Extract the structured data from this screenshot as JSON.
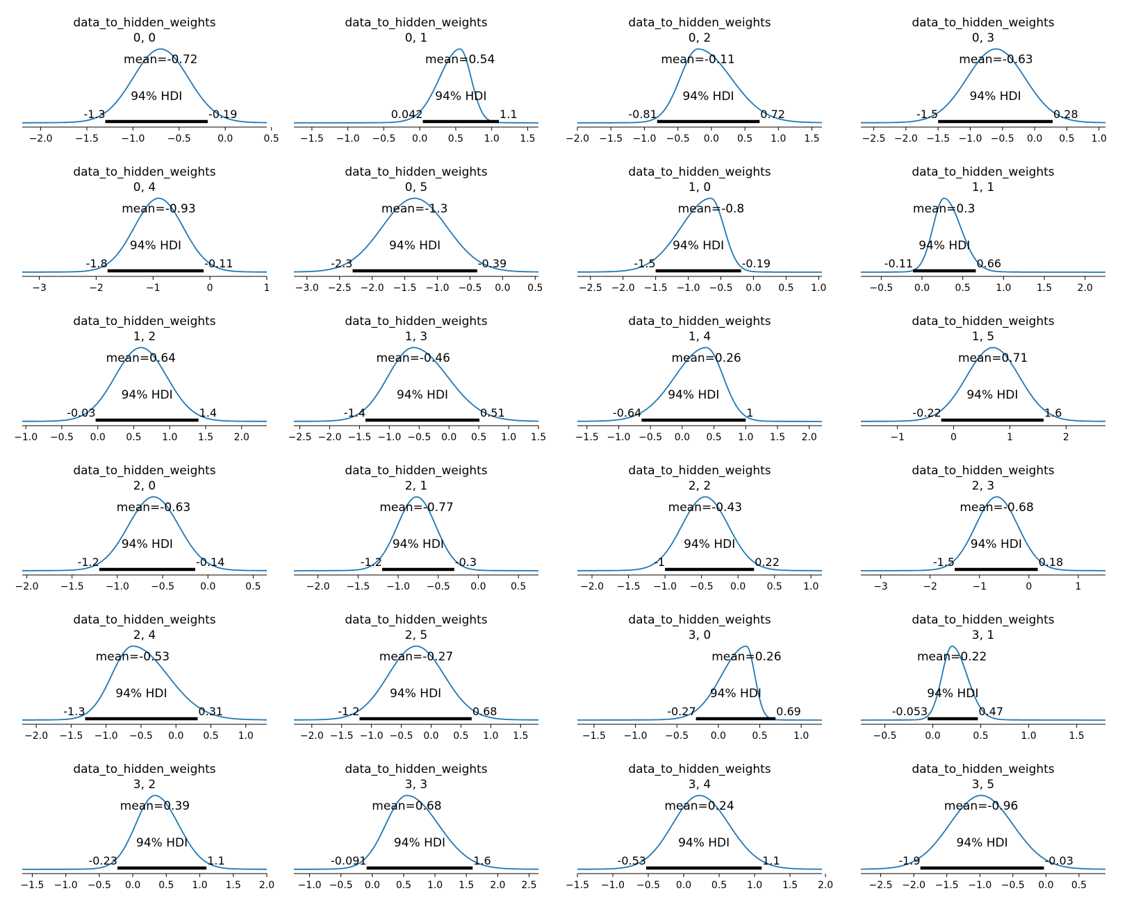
{
  "colors": {
    "density": "#1f77b4",
    "hdi_bar": "#000000",
    "axis": "#000000"
  },
  "chart_data": [
    {
      "type": "area",
      "title": "data_to_hidden_weights",
      "subtitle": "0, 0",
      "mean": -0.72,
      "mean_label": "mean=-0.72",
      "hdi_label": "94% HDI",
      "hdi": [
        -1.3,
        -0.19
      ],
      "hdi_labels": [
        "-1.3",
        "-0.19"
      ],
      "xlim": [
        -2.2,
        0.45
      ],
      "ticks": [
        -2.0,
        -1.5,
        -1.0,
        -0.5,
        0.0,
        0.5
      ],
      "tick_labels": [
        "−2.0",
        "−1.5",
        "−1.0",
        "−0.5",
        "0.0",
        "0.5"
      ],
      "mode": -0.7,
      "sigma": 0.3,
      "skew": 0
    },
    {
      "type": "area",
      "title": "data_to_hidden_weights",
      "subtitle": "0, 1",
      "mean": 0.54,
      "mean_label": "mean=0.54",
      "hdi_label": "94% HDI",
      "hdi": [
        0.042,
        1.1
      ],
      "hdi_labels": [
        "0.042",
        "1.1"
      ],
      "xlim": [
        -1.75,
        1.65
      ],
      "ticks": [
        -1.5,
        -1.0,
        -0.5,
        0.0,
        0.5,
        1.0,
        1.5
      ],
      "tick_labels": [
        "−1.5",
        "−1.0",
        "−0.5",
        "0.0",
        "0.5",
        "1.0",
        "1.5"
      ],
      "mode": 0.56,
      "sigma": 0.22,
      "skew": -0.3
    },
    {
      "type": "area",
      "title": "data_to_hidden_weights",
      "subtitle": "0, 2",
      "mean": -0.11,
      "mean_label": "mean=-0.11",
      "hdi_label": "94% HDI",
      "hdi": [
        -0.81,
        0.72
      ],
      "hdi_labels": [
        "-0.81",
        "0.72"
      ],
      "xlim": [
        -2.0,
        1.65
      ],
      "ticks": [
        -2.0,
        -1.5,
        -1.0,
        -0.5,
        0.0,
        0.5,
        1.0,
        1.5
      ],
      "tick_labels": [
        "−2.0",
        "−1.5",
        "−1.0",
        "−0.5",
        "0.0",
        "0.5",
        "1.0",
        "1.5"
      ],
      "mode": -0.2,
      "sigma": 0.38,
      "skew": 0.3
    },
    {
      "type": "area",
      "title": "data_to_hidden_weights",
      "subtitle": "0, 3",
      "mean": -0.63,
      "mean_label": "mean=-0.63",
      "hdi_label": "94% HDI",
      "hdi": [
        -1.5,
        0.28
      ],
      "hdi_labels": [
        "-1.5",
        "0.28"
      ],
      "xlim": [
        -2.7,
        1.1
      ],
      "ticks": [
        -2.5,
        -2.0,
        -1.5,
        -1.0,
        -0.5,
        0.0,
        0.5,
        1.0
      ],
      "tick_labels": [
        "−2.5",
        "−2.0",
        "−1.5",
        "−1.0",
        "−0.5",
        "0.0",
        "0.5",
        "1.0"
      ],
      "mode": -0.6,
      "sigma": 0.45,
      "skew": 0
    },
    {
      "type": "area",
      "title": "data_to_hidden_weights",
      "subtitle": "0, 4",
      "mean": -0.93,
      "mean_label": "mean=-0.93",
      "hdi_label": "94% HDI",
      "hdi": [
        -1.8,
        -0.11
      ],
      "hdi_labels": [
        "-1.8",
        "-0.11"
      ],
      "xlim": [
        -3.3,
        1.0
      ],
      "ticks": [
        -3,
        -2,
        -1,
        0,
        1
      ],
      "tick_labels": [
        "−3",
        "−2",
        "−1",
        "0",
        "1"
      ],
      "mode": -0.9,
      "sigma": 0.43,
      "skew": 0
    },
    {
      "type": "area",
      "title": "data_to_hidden_weights",
      "subtitle": "0, 5",
      "mean": -1.3,
      "mean_label": "mean=-1.3",
      "hdi_label": "94% HDI",
      "hdi": [
        -2.3,
        -0.39
      ],
      "hdi_labels": [
        "-2.3",
        "-0.39"
      ],
      "xlim": [
        -3.2,
        0.55
      ],
      "ticks": [
        -3.0,
        -2.5,
        -2.0,
        -1.5,
        -1.0,
        -0.5,
        0.0,
        0.5
      ],
      "tick_labels": [
        "−3.0",
        "−2.5",
        "−2.0",
        "−1.5",
        "−1.0",
        "−0.5",
        "0.0",
        "0.5"
      ],
      "mode": -1.35,
      "sigma": 0.5,
      "skew": 0
    },
    {
      "type": "area",
      "title": "data_to_hidden_weights",
      "subtitle": "1, 0",
      "mean": -0.8,
      "mean_label": "mean=-0.8",
      "hdi_label": "94% HDI",
      "hdi": [
        -1.5,
        -0.19
      ],
      "hdi_labels": [
        "-1.5",
        "-0.19"
      ],
      "xlim": [
        -2.7,
        1.05
      ],
      "ticks": [
        -2.5,
        -2.0,
        -1.5,
        -1.0,
        -0.5,
        0.0,
        0.5,
        1.0
      ],
      "tick_labels": [
        "−2.5",
        "−2.0",
        "−1.5",
        "−1.0",
        "−0.5",
        "0.0",
        "0.5",
        "1.0"
      ],
      "mode": -0.65,
      "sigma": 0.33,
      "skew": -0.4
    },
    {
      "type": "area",
      "title": "data_to_hidden_weights",
      "subtitle": "1, 1",
      "mean": 0.3,
      "mean_label": "mean=0.3",
      "hdi_label": "94% HDI",
      "hdi": [
        -0.11,
        0.66
      ],
      "hdi_labels": [
        "-0.11",
        "0.66"
      ],
      "xlim": [
        -0.75,
        2.25
      ],
      "ticks": [
        -0.5,
        0.0,
        0.5,
        1.0,
        1.5,
        2.0
      ],
      "tick_labels": [
        "−0.5",
        "0.0",
        "0.5",
        "1.0",
        "1.5",
        "2.0"
      ],
      "mode": 0.27,
      "sigma": 0.17,
      "skew": 0.2
    },
    {
      "type": "area",
      "title": "data_to_hidden_weights",
      "subtitle": "1, 2",
      "mean": 0.64,
      "mean_label": "mean=0.64",
      "hdi_label": "94% HDI",
      "hdi": [
        -0.03,
        1.4
      ],
      "hdi_labels": [
        "-0.03",
        "1.4"
      ],
      "xlim": [
        -1.05,
        2.35
      ],
      "ticks": [
        -1.0,
        -0.5,
        0.0,
        0.5,
        1.0,
        1.5,
        2.0
      ],
      "tick_labels": [
        "−1.0",
        "−0.5",
        "0.0",
        "0.5",
        "1.0",
        "1.5",
        "2.0"
      ],
      "mode": 0.6,
      "sigma": 0.36,
      "skew": 0
    },
    {
      "type": "area",
      "title": "data_to_hidden_weights",
      "subtitle": "1, 3",
      "mean": -0.46,
      "mean_label": "mean=-0.46",
      "hdi_label": "94% HDI",
      "hdi": [
        -1.4,
        0.51
      ],
      "hdi_labels": [
        "-1.4",
        "0.51"
      ],
      "xlim": [
        -2.6,
        1.5
      ],
      "ticks": [
        -2.5,
        -2.0,
        -1.5,
        -1.0,
        -0.5,
        0.0,
        0.5,
        1.0,
        1.5
      ],
      "tick_labels": [
        "−2.5",
        "−2.0",
        "−1.5",
        "−1.0",
        "−0.5",
        "0.0",
        "0.5",
        "1.0",
        "1.5"
      ],
      "mode": -0.6,
      "sigma": 0.5,
      "skew": 0.15
    },
    {
      "type": "area",
      "title": "data_to_hidden_weights",
      "subtitle": "1, 4",
      "mean": 0.26,
      "mean_label": "mean=0.26",
      "hdi_label": "94% HDI",
      "hdi": [
        -0.64,
        1.0
      ],
      "hdi_labels": [
        "-0.64",
        "1"
      ],
      "xlim": [
        -1.65,
        2.2
      ],
      "ticks": [
        -1.5,
        -1.0,
        -0.5,
        0.0,
        0.5,
        1.0,
        1.5,
        2.0
      ],
      "tick_labels": [
        "−1.5",
        "−1.0",
        "−0.5",
        "0.0",
        "0.5",
        "1.0",
        "1.5",
        "2.0"
      ],
      "mode": 0.38,
      "sigma": 0.38,
      "skew": -0.3
    },
    {
      "type": "area",
      "title": "data_to_hidden_weights",
      "subtitle": "1, 5",
      "mean": 0.71,
      "mean_label": "mean=0.71",
      "hdi_label": "94% HDI",
      "hdi": [
        -0.22,
        1.6
      ],
      "hdi_labels": [
        "-0.22",
        "1.6"
      ],
      "xlim": [
        -1.65,
        2.7
      ],
      "ticks": [
        -1,
        0,
        1,
        2
      ],
      "tick_labels": [
        "−1",
        "0",
        "1",
        "2"
      ],
      "mode": 0.7,
      "sigma": 0.47,
      "skew": 0
    },
    {
      "type": "area",
      "title": "data_to_hidden_weights",
      "subtitle": "2, 0",
      "mean": -0.63,
      "mean_label": "mean=-0.63",
      "hdi_label": "94% HDI",
      "hdi": [
        -1.2,
        -0.14
      ],
      "hdi_labels": [
        "-1.2",
        "-0.14"
      ],
      "xlim": [
        -2.05,
        0.65
      ],
      "ticks": [
        -2.0,
        -1.5,
        -1.0,
        -0.5,
        0.0,
        0.5
      ],
      "tick_labels": [
        "−2.0",
        "−1.5",
        "−1.0",
        "−0.5",
        "0.0",
        "0.5"
      ],
      "mode": -0.6,
      "sigma": 0.28,
      "skew": 0
    },
    {
      "type": "area",
      "title": "data_to_hidden_weights",
      "subtitle": "2, 1",
      "mean": -0.77,
      "mean_label": "mean=-0.77",
      "hdi_label": "94% HDI",
      "hdi": [
        -1.2,
        -0.3
      ],
      "hdi_labels": [
        "-1.2",
        "-0.3"
      ],
      "xlim": [
        -2.3,
        0.75
      ],
      "ticks": [
        -2.0,
        -1.5,
        -1.0,
        -0.5,
        0.0,
        0.5
      ],
      "tick_labels": [
        "−2.0",
        "−1.5",
        "−1.0",
        "−0.5",
        "0.0",
        "0.5"
      ],
      "mode": -0.77,
      "sigma": 0.24,
      "skew": 0
    },
    {
      "type": "area",
      "title": "data_to_hidden_weights",
      "subtitle": "2, 2",
      "mean": -0.43,
      "mean_label": "mean=-0.43",
      "hdi_label": "94% HDI",
      "hdi": [
        -1.0,
        0.22
      ],
      "hdi_labels": [
        "-1",
        "0.22"
      ],
      "xlim": [
        -2.2,
        1.15
      ],
      "ticks": [
        -2.0,
        -1.5,
        -1.0,
        -0.5,
        0.0,
        0.5,
        1.0
      ],
      "tick_labels": [
        "−2.0",
        "−1.5",
        "−1.0",
        "−0.5",
        "0.0",
        "0.5",
        "1.0"
      ],
      "mode": -0.45,
      "sigma": 0.32,
      "skew": 0
    },
    {
      "type": "area",
      "title": "data_to_hidden_weights",
      "subtitle": "2, 3",
      "mean": -0.68,
      "mean_label": "mean=-0.68",
      "hdi_label": "94% HDI",
      "hdi": [
        -1.5,
        0.18
      ],
      "hdi_labels": [
        "-1.5",
        "0.18"
      ],
      "xlim": [
        -3.4,
        1.55
      ],
      "ticks": [
        -3,
        -2,
        -1,
        0,
        1
      ],
      "tick_labels": [
        "−3",
        "−2",
        "−1",
        "0",
        "1"
      ],
      "mode": -0.65,
      "sigma": 0.43,
      "skew": 0
    },
    {
      "type": "area",
      "title": "data_to_hidden_weights",
      "subtitle": "2, 4",
      "mean": -0.53,
      "mean_label": "mean=-0.53",
      "hdi_label": "94% HDI",
      "hdi": [
        -1.3,
        0.31
      ],
      "hdi_labels": [
        "-1.3",
        "0.31"
      ],
      "xlim": [
        -2.2,
        1.3
      ],
      "ticks": [
        -2.0,
        -1.5,
        -1.0,
        -0.5,
        0.0,
        0.5,
        1.0
      ],
      "tick_labels": [
        "−2.0",
        "−1.5",
        "−1.0",
        "−0.5",
        "0.0",
        "0.5",
        "1.0"
      ],
      "mode": -0.62,
      "sigma": 0.4,
      "skew": 0.25
    },
    {
      "type": "area",
      "title": "data_to_hidden_weights",
      "subtitle": "2, 5",
      "mean": -0.27,
      "mean_label": "mean=-0.27",
      "hdi_label": "94% HDI",
      "hdi": [
        -1.2,
        0.68
      ],
      "hdi_labels": [
        "-1.2",
        "0.68"
      ],
      "xlim": [
        -2.3,
        1.8
      ],
      "ticks": [
        -2.0,
        -1.5,
        -1.0,
        -0.5,
        0.0,
        0.5,
        1.0,
        1.5
      ],
      "tick_labels": [
        "−2.0",
        "−1.5",
        "−1.0",
        "−0.5",
        "0.0",
        "0.5",
        "1.0",
        "1.5"
      ],
      "mode": -0.25,
      "sigma": 0.47,
      "skew": 0
    },
    {
      "type": "area",
      "title": "data_to_hidden_weights",
      "subtitle": "3, 0",
      "mean": 0.26,
      "mean_label": "mean=0.26",
      "hdi_label": "94% HDI",
      "hdi": [
        -0.27,
        0.69
      ],
      "hdi_labels": [
        "-0.27",
        "0.69"
      ],
      "xlim": [
        -1.7,
        1.25
      ],
      "ticks": [
        -1.5,
        -1.0,
        -0.5,
        0.0,
        0.5,
        1.0
      ],
      "tick_labels": [
        "−1.5",
        "−1.0",
        "−0.5",
        "0.0",
        "0.5",
        "1.0"
      ],
      "mode": 0.34,
      "sigma": 0.2,
      "skew": -0.5
    },
    {
      "type": "area",
      "title": "data_to_hidden_weights",
      "subtitle": "3, 1",
      "mean": 0.22,
      "mean_label": "mean=0.22",
      "hdi_label": "94% HDI",
      "hdi": [
        -0.053,
        0.47
      ],
      "hdi_labels": [
        "-0.053",
        "0.47"
      ],
      "xlim": [
        -0.75,
        1.8
      ],
      "ticks": [
        -0.5,
        0.0,
        0.5,
        1.0,
        1.5
      ],
      "tick_labels": [
        "−0.5",
        "0.0",
        "0.5",
        "1.0",
        "1.5"
      ],
      "mode": 0.2,
      "sigma": 0.13,
      "skew": 0.2
    },
    {
      "type": "area",
      "title": "data_to_hidden_weights",
      "subtitle": "3, 2",
      "mean": 0.39,
      "mean_label": "mean=0.39",
      "hdi_label": "94% HDI",
      "hdi": [
        -0.23,
        1.1
      ],
      "hdi_labels": [
        "-0.23",
        "1.1"
      ],
      "xlim": [
        -1.65,
        2.0
      ],
      "ticks": [
        -1.5,
        -1.0,
        -0.5,
        0.0,
        0.5,
        1.0,
        1.5,
        2.0
      ],
      "tick_labels": [
        "−1.5",
        "−1.0",
        "−0.5",
        "0.0",
        "0.5",
        "1.0",
        "1.5",
        "2.0"
      ],
      "mode": 0.33,
      "sigma": 0.32,
      "skew": 0.1
    },
    {
      "type": "area",
      "title": "data_to_hidden_weights",
      "subtitle": "3, 3",
      "mean": 0.68,
      "mean_label": "mean=0.68",
      "hdi_label": "94% HDI",
      "hdi": [
        -0.091,
        1.6
      ],
      "hdi_labels": [
        "-0.091",
        "1.6"
      ],
      "xlim": [
        -1.25,
        2.65
      ],
      "ticks": [
        -1.0,
        -0.5,
        0.0,
        0.5,
        1.0,
        1.5,
        2.0,
        2.5
      ],
      "tick_labels": [
        "−1.0",
        "−0.5",
        "0.0",
        "0.5",
        "1.0",
        "1.5",
        "2.0",
        "2.5"
      ],
      "mode": 0.55,
      "sigma": 0.42,
      "skew": 0.2
    },
    {
      "type": "area",
      "title": "data_to_hidden_weights",
      "subtitle": "3, 4",
      "mean": 0.24,
      "mean_label": "mean=0.24",
      "hdi_label": "94% HDI",
      "hdi": [
        -0.53,
        1.1
      ],
      "hdi_labels": [
        "-0.53",
        "1.1"
      ],
      "xlim": [
        -1.5,
        1.95
      ],
      "ticks": [
        -1.5,
        -1.0,
        -0.5,
        0.0,
        0.5,
        1.0,
        1.5,
        2.0
      ],
      "tick_labels": [
        "−1.5",
        "−1.0",
        "−0.5",
        "0.0",
        "0.5",
        "1.0",
        "1.5",
        "2.0"
      ],
      "mode": 0.22,
      "sigma": 0.4,
      "skew": 0.05
    },
    {
      "type": "area",
      "title": "data_to_hidden_weights",
      "subtitle": "3, 5",
      "mean": -0.96,
      "mean_label": "mean=-0.96",
      "hdi_label": "94% HDI",
      "hdi": [
        -1.9,
        -0.03
      ],
      "hdi_labels": [
        "-1.9",
        "-0.03"
      ],
      "xlim": [
        -2.8,
        0.9
      ],
      "ticks": [
        -2.5,
        -2.0,
        -1.5,
        -1.0,
        -0.5,
        0.0,
        0.5
      ],
      "tick_labels": [
        "−2.5",
        "−2.0",
        "−1.5",
        "−1.0",
        "−0.5",
        "0.0",
        "0.5"
      ],
      "mode": -0.98,
      "sigma": 0.48,
      "skew": 0
    }
  ]
}
